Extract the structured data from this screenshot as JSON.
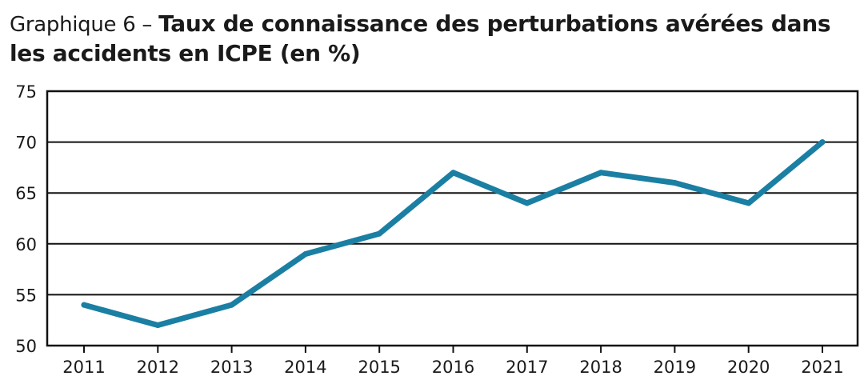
{
  "title_prefix": "Graphique 6 – ",
  "title_main": "Taux de connaissance des perturbations avérées dans les accidents en ICPE (en %)",
  "colors": {
    "line": "#1a7fa3",
    "grid": "#111111",
    "text": "#1a1a1a"
  },
  "chart_data": {
    "type": "line",
    "title": "Taux de connaissance des perturbations avérées dans les accidents en ICPE (en %)",
    "xlabel": "",
    "ylabel": "",
    "categories": [
      "2011",
      "2012",
      "2013",
      "2014",
      "2015",
      "2016",
      "2017",
      "2018",
      "2019",
      "2020",
      "2021"
    ],
    "series": [
      {
        "values": [
          54,
          52,
          54,
          59,
          61,
          67,
          64,
          67,
          66,
          64,
          70
        ]
      }
    ],
    "ylim": [
      50,
      75
    ],
    "yticks": [
      "50",
      "55",
      "60",
      "65",
      "70",
      "75"
    ],
    "grid": true,
    "legend": "none"
  }
}
